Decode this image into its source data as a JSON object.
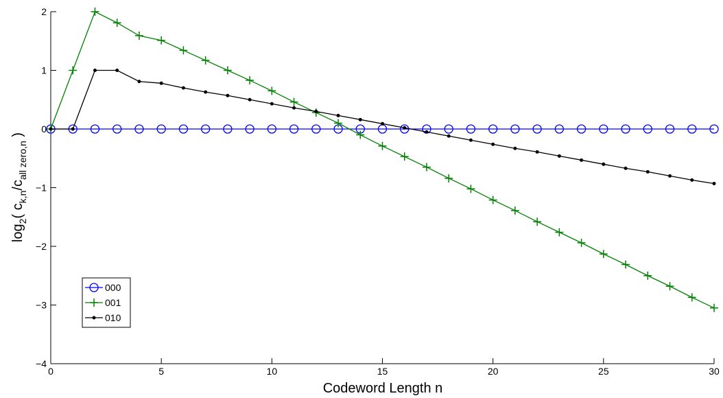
{
  "chart_data": {
    "type": "line",
    "x_label": "Codeword Length n",
    "y_label": [
      "log",
      "2",
      "( c",
      "k,n",
      "/c",
      "all zero,n",
      " )"
    ],
    "x": [
      0,
      1,
      2,
      3,
      4,
      5,
      6,
      7,
      8,
      9,
      10,
      11,
      12,
      13,
      14,
      15,
      16,
      17,
      18,
      19,
      20,
      21,
      22,
      23,
      24,
      25,
      26,
      27,
      28,
      29,
      30
    ],
    "series": [
      {
        "name": "000",
        "color": "#0000ff",
        "marker": "circle",
        "values": [
          0,
          0,
          0,
          0,
          0,
          0,
          0,
          0,
          0,
          0,
          0,
          0,
          0,
          0,
          0,
          0,
          0,
          0,
          0,
          0,
          0,
          0,
          0,
          0,
          0,
          0,
          0,
          0,
          0,
          0,
          0
        ]
      },
      {
        "name": "001",
        "color": "#008000",
        "marker": "plus",
        "values": [
          0,
          1,
          2,
          1.81,
          1.59,
          1.51,
          1.34,
          1.17,
          1.0,
          0.83,
          0.65,
          0.46,
          0.28,
          0.1,
          -0.1,
          -0.29,
          -0.47,
          -0.65,
          -0.84,
          -1.02,
          -1.21,
          -1.39,
          -1.58,
          -1.76,
          -1.94,
          -2.13,
          -2.31,
          -2.5,
          -2.68,
          -2.87,
          -3.05
        ]
      },
      {
        "name": "010",
        "color": "#000000",
        "marker": "dot",
        "values": [
          0,
          0,
          1.0,
          1.0,
          0.81,
          0.78,
          0.7,
          0.63,
          0.57,
          0.5,
          0.43,
          0.36,
          0.3,
          0.23,
          0.16,
          0.09,
          0.02,
          -0.05,
          -0.12,
          -0.19,
          -0.26,
          -0.33,
          -0.39,
          -0.46,
          -0.53,
          -0.6,
          -0.67,
          -0.73,
          -0.8,
          -0.87,
          -0.93
        ]
      }
    ],
    "xlim": [
      0,
      30
    ],
    "xticks": [
      0,
      5,
      10,
      15,
      20,
      25,
      30
    ],
    "ylim": [
      -4,
      2
    ],
    "yticks": [
      {
        "value": -4,
        "label": "−4"
      },
      {
        "value": -3,
        "label": "−3"
      },
      {
        "value": -2,
        "label": "−2"
      },
      {
        "value": -1,
        "label": "−1"
      },
      0,
      1,
      2
    ],
    "grid": false,
    "legend": "lower left"
  }
}
